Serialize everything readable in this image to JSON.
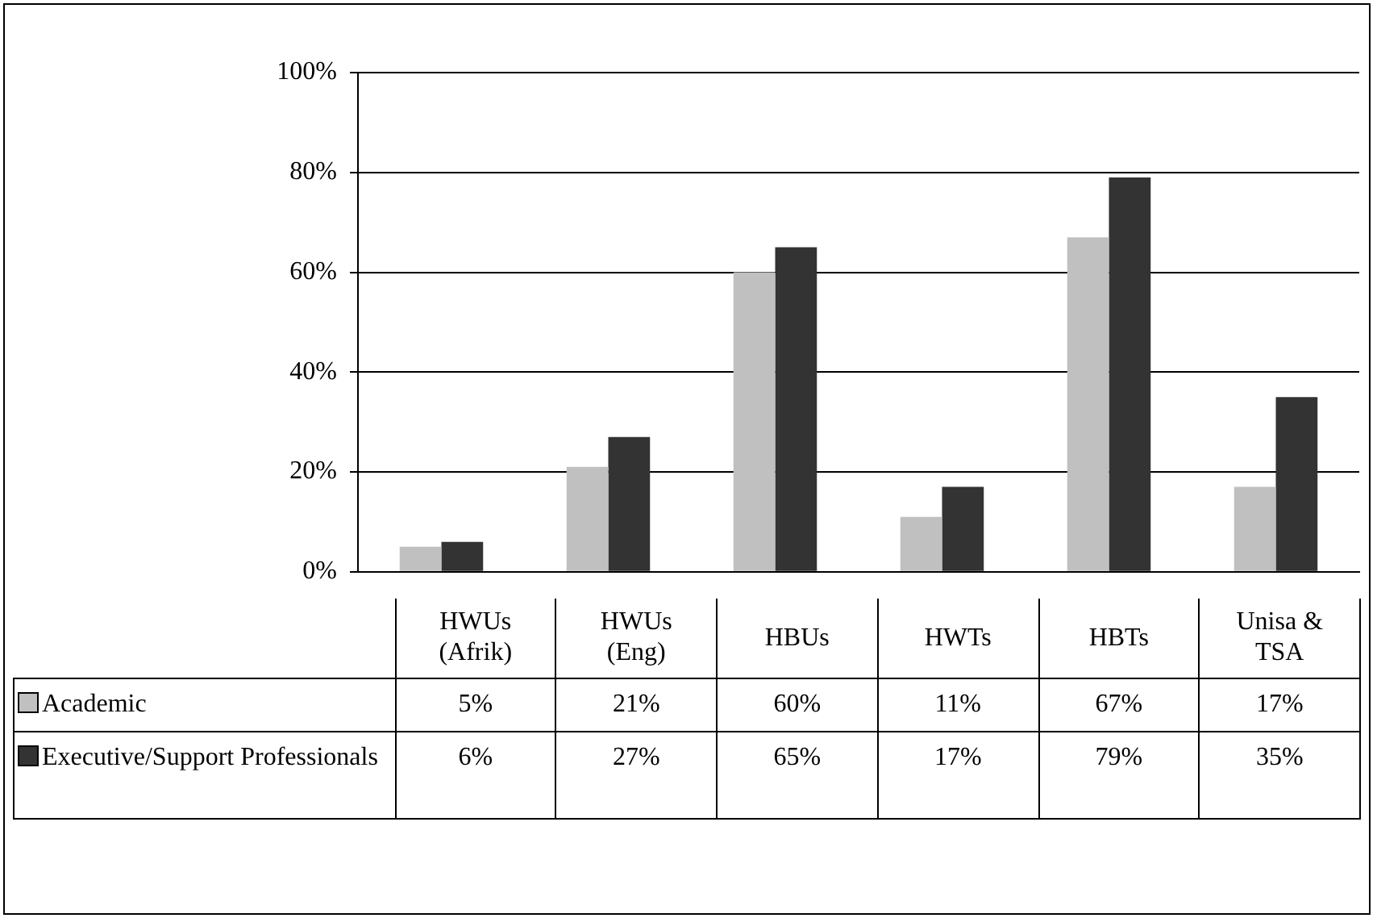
{
  "chart_data": {
    "type": "bar",
    "categories": [
      "HWUs (Afrik)",
      "HWUs (Eng)",
      "HBUs",
      "HWTs",
      "HBTs",
      "Unisa & TSA"
    ],
    "series": [
      {
        "name": "Academic",
        "color": "#c0c0c0",
        "values": [
          5,
          21,
          60,
          11,
          67,
          17
        ],
        "value_labels": [
          "5%",
          "21%",
          "60%",
          "11%",
          "67%",
          "17%"
        ]
      },
      {
        "name": "Executive/Support Professionals",
        "color": "#333333",
        "values": [
          6,
          27,
          65,
          17,
          79,
          35
        ],
        "value_labels": [
          "6%",
          "27%",
          "65%",
          "17%",
          "79%",
          "35%"
        ]
      }
    ],
    "ylim": [
      0,
      100
    ],
    "yticks": [
      {
        "value": 0,
        "label": "0%"
      },
      {
        "value": 20,
        "label": "20%"
      },
      {
        "value": 40,
        "label": "40%"
      },
      {
        "value": 60,
        "label": "60%"
      },
      {
        "value": 80,
        "label": "80%"
      },
      {
        "value": 100,
        "label": "100%"
      }
    ],
    "grid": "y",
    "legend": "bottom"
  }
}
